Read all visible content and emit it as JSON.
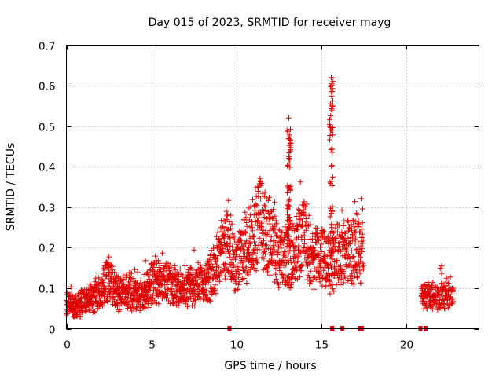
{
  "chart_data": {
    "type": "scatter",
    "title": "Day 015 of 2023, SRMTID for receiver mayg",
    "xlabel": "GPS time / hours",
    "ylabel": "SRMTID / TECUs",
    "xlim": [
      0,
      24.3
    ],
    "ylim": [
      0,
      0.7
    ],
    "xticks": [
      0,
      5,
      10,
      15,
      20
    ],
    "xtick_labels": [
      "0",
      "5",
      "10",
      "15",
      "20"
    ],
    "yticks": [
      0,
      0.1,
      0.2,
      0.3,
      0.4,
      0.5,
      0.6,
      0.7
    ],
    "ytick_labels": [
      "0",
      "0.1",
      "0.2",
      "0.3",
      "0.4",
      "0.5",
      "0.6",
      "0.7"
    ],
    "grid": true,
    "marker": "+",
    "color": "#e00000",
    "series": [
      {
        "name": "SRMTID",
        "profile_hours": [
          0,
          0.5,
          1,
          1.5,
          2,
          2.4,
          2.7,
          3,
          3.5,
          4,
          4.5,
          5,
          5.5,
          6,
          6.5,
          7,
          7.5,
          8,
          8.5,
          9,
          9.5,
          10,
          10.5,
          11,
          11.5,
          12,
          12.5,
          13,
          13.5,
          14,
          14.5,
          15,
          15.5,
          16,
          16.5,
          17,
          17.5
        ],
        "profile_median_tecu": [
          0.06,
          0.06,
          0.07,
          0.075,
          0.09,
          0.13,
          0.11,
          0.085,
          0.09,
          0.09,
          0.08,
          0.11,
          0.12,
          0.115,
          0.1,
          0.1,
          0.11,
          0.11,
          0.13,
          0.18,
          0.21,
          0.15,
          0.2,
          0.24,
          0.27,
          0.22,
          0.19,
          0.17,
          0.21,
          0.22,
          0.17,
          0.18,
          0.16,
          0.18,
          0.19,
          0.2,
          0.2
        ],
        "spikes": [
          {
            "hour": 13.1,
            "peak_tecu": 0.52
          },
          {
            "hour": 15.6,
            "peak_tecu": 0.62
          }
        ],
        "late_cluster": {
          "start_hour": 20.9,
          "end_hour": 22.8,
          "median_tecu": 0.08,
          "peak_tecu": 0.155
        },
        "baseline_marks_hours": [
          9.6,
          15.65,
          16.25,
          17.3,
          17.4,
          20.85,
          21.15
        ]
      }
    ]
  }
}
